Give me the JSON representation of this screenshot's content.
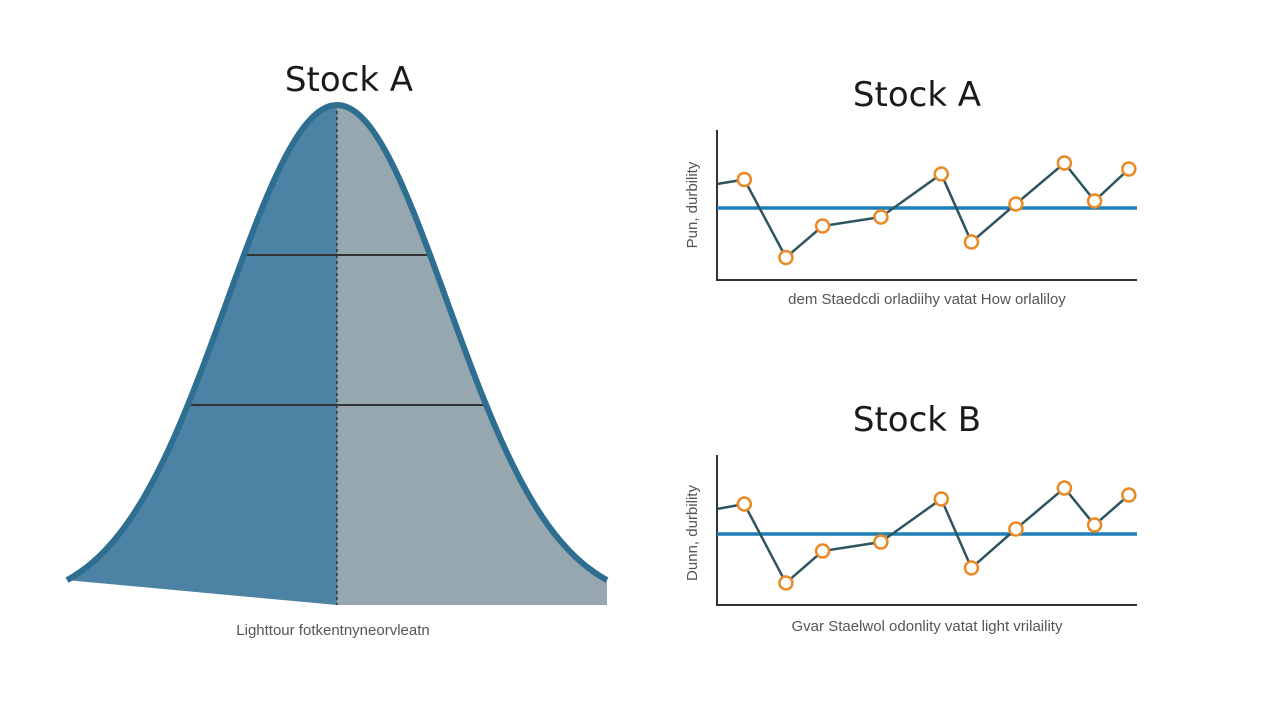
{
  "colors": {
    "left_fill": "#4c82a4",
    "right_fill": "#96a7b0",
    "outline": "#2e6e91",
    "mean_line": "#1f7fb6",
    "series_line": "#2c5560",
    "marker": "#e98a25",
    "axis": "#333333"
  },
  "chart_data": [
    {
      "type": "area",
      "title": "Stock A",
      "xlabel": "Lighttour fotkentnyneorvleatn",
      "distribution": "normal",
      "mean": 0,
      "sd": 1,
      "xlim": [
        -2.45,
        2.45
      ],
      "reference_levels": [
        0.7,
        0.4
      ],
      "grid": false
    },
    {
      "type": "line",
      "title": "Stock A",
      "xlabel": "dem Staedcdi orladiihy vatat How orlaliloy",
      "ylabel": "Pun, durbility",
      "xlim": [
        0,
        10.3
      ],
      "ylim": [
        0,
        10
      ],
      "x": [
        0,
        0.67,
        1.69,
        2.59,
        4.02,
        5.5,
        6.24,
        7.33,
        8.52,
        9.26,
        10.1
      ],
      "y": [
        6.4,
        6.7,
        1.5,
        3.6,
        4.2,
        7.07,
        2.53,
        5.07,
        7.8,
        5.27,
        7.4
      ],
      "mean": 4.8,
      "grid": false
    },
    {
      "type": "line",
      "title": "Stock B",
      "xlabel": "Gvar Staelwol odonlity vatat light vrilaility",
      "ylabel": "Dunn, durbility",
      "xlim": [
        0,
        10.3
      ],
      "ylim": [
        0,
        10
      ],
      "x": [
        0,
        0.67,
        1.69,
        2.59,
        4.02,
        5.5,
        6.24,
        7.33,
        8.52,
        9.26,
        10.1
      ],
      "y": [
        6.4,
        6.73,
        1.47,
        3.6,
        4.2,
        7.07,
        2.47,
        5.07,
        7.8,
        5.33,
        7.33
      ],
      "mean": 4.73,
      "grid": false
    }
  ]
}
